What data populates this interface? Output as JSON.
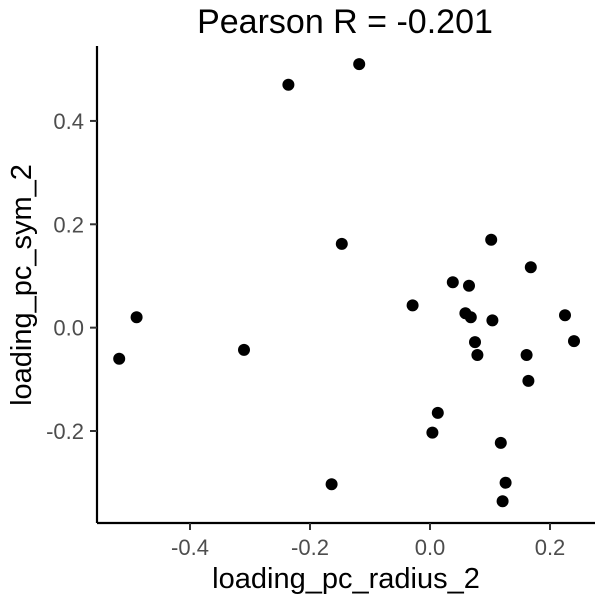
{
  "chart_data": {
    "type": "scatter",
    "title": "Pearson R = -0.201",
    "xlabel": "loading_pc_radius_2",
    "ylabel": "loading_pc_sym_2",
    "xlim": [
      -0.555,
      0.275
    ],
    "ylim": [
      -0.378,
      0.545
    ],
    "x_ticks": [
      -0.4,
      -0.2,
      0.0,
      0.2
    ],
    "x_tick_labels": [
      "-0.4",
      "-0.2",
      "0.0",
      "0.2"
    ],
    "y_ticks": [
      -0.2,
      0.0,
      0.2,
      0.4
    ],
    "y_tick_labels": [
      "-0.2",
      "0.0",
      "0.2",
      "0.4"
    ],
    "grid": false,
    "legend": "none",
    "point_color": "#000000",
    "points": [
      {
        "x": -0.518,
        "y": -0.06
      },
      {
        "x": -0.489,
        "y": 0.02
      },
      {
        "x": -0.31,
        "y": -0.043
      },
      {
        "x": -0.236,
        "y": 0.47
      },
      {
        "x": -0.164,
        "y": -0.303
      },
      {
        "x": -0.147,
        "y": 0.162
      },
      {
        "x": -0.118,
        "y": 0.51
      },
      {
        "x": -0.029,
        "y": 0.043
      },
      {
        "x": 0.004,
        "y": -0.203
      },
      {
        "x": 0.013,
        "y": -0.165
      },
      {
        "x": 0.038,
        "y": 0.088
      },
      {
        "x": 0.059,
        "y": 0.028
      },
      {
        "x": 0.065,
        "y": 0.081
      },
      {
        "x": 0.068,
        "y": 0.02
      },
      {
        "x": 0.075,
        "y": -0.028
      },
      {
        "x": 0.079,
        "y": -0.053
      },
      {
        "x": 0.102,
        "y": 0.17
      },
      {
        "x": 0.104,
        "y": 0.014
      },
      {
        "x": 0.118,
        "y": -0.223
      },
      {
        "x": 0.121,
        "y": -0.336
      },
      {
        "x": 0.126,
        "y": -0.3
      },
      {
        "x": 0.161,
        "y": -0.053
      },
      {
        "x": 0.164,
        "y": -0.103
      },
      {
        "x": 0.168,
        "y": 0.117
      },
      {
        "x": 0.225,
        "y": 0.024
      },
      {
        "x": 0.24,
        "y": -0.026
      }
    ]
  }
}
